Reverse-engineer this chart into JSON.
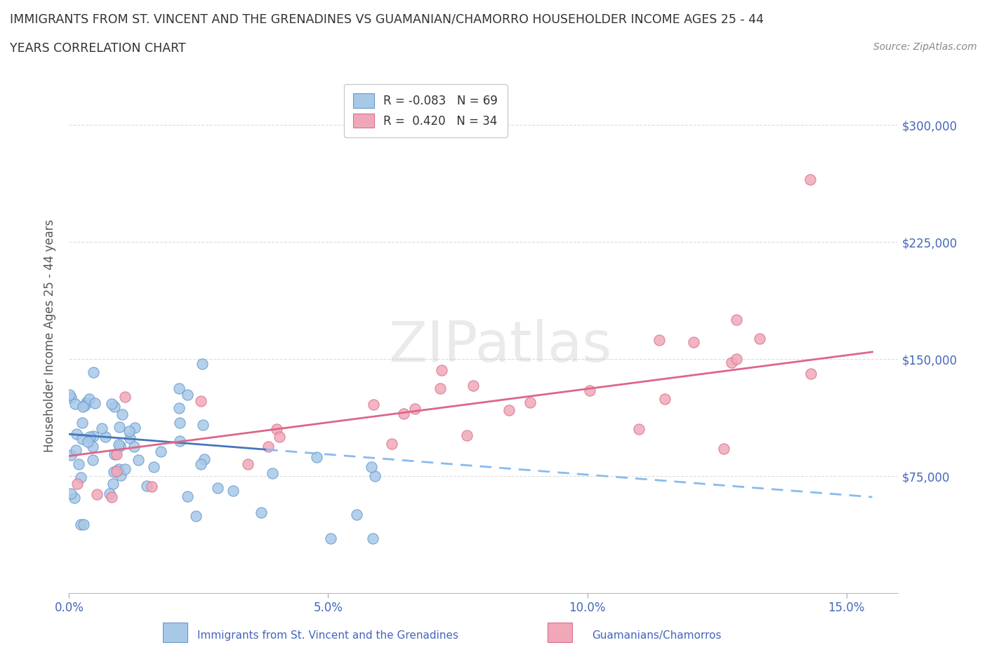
{
  "title_line1": "IMMIGRANTS FROM ST. VINCENT AND THE GRENADINES VS GUAMANIAN/CHAMORRO HOUSEHOLDER INCOME AGES 25 - 44",
  "title_line2": "YEARS CORRELATION CHART",
  "source_text": "Source: ZipAtlas.com",
  "ylabel": "Householder Income Ages 25 - 44 years",
  "xlim": [
    0.0,
    0.16
  ],
  "ylim": [
    0,
    330000
  ],
  "xticks": [
    0.0,
    0.05,
    0.1,
    0.15
  ],
  "xticklabels": [
    "0.0%",
    "5.0%",
    "10.0%",
    "15.0%"
  ],
  "ytick_positions": [
    75000,
    150000,
    225000,
    300000
  ],
  "ytick_labels": [
    "$75,000",
    "$150,000",
    "$225,000",
    "$300,000"
  ],
  "watermark": "ZIPatlas",
  "series1_color": "#a8c8e8",
  "series1_edge": "#6699cc",
  "series2_color": "#f0a8b8",
  "series2_edge": "#d97090",
  "line1_solid_color": "#4477bb",
  "line1_dash_color": "#88bbee",
  "line2_color": "#dd6688",
  "R1": -0.083,
  "N1": 69,
  "R2": 0.42,
  "N2": 34,
  "background_color": "#ffffff",
  "grid_color": "#cccccc",
  "title_color": "#333333",
  "axis_label_color": "#555555",
  "tick_label_color": "#4466bb",
  "source_color": "#888888",
  "legend_text_color": "#333333",
  "legend_r_color": "#4466bb"
}
